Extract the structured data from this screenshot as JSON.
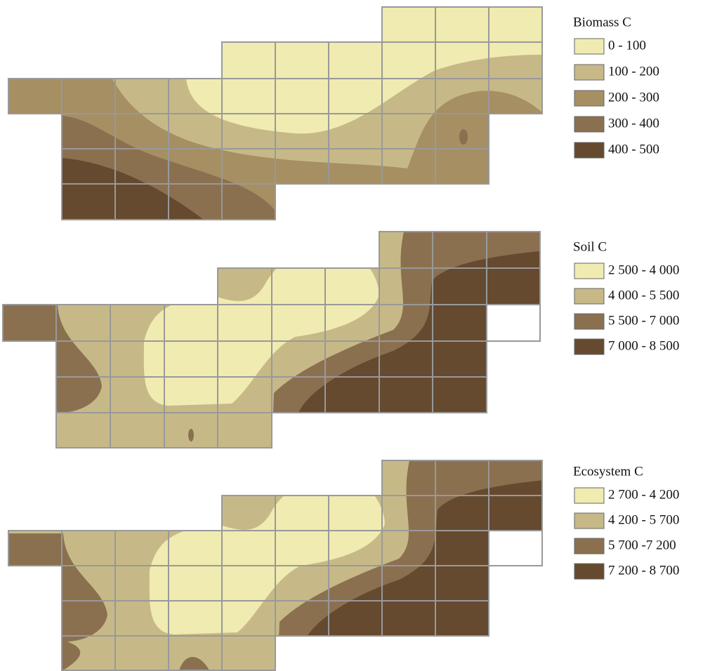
{
  "legends": [
    {
      "title": "Biomass C",
      "items": [
        {
          "label": "0 - 100",
          "color": "#f0ebb0"
        },
        {
          "label": "100 - 200",
          "color": "#c6b987"
        },
        {
          "label": "200 - 300",
          "color": "#a68f63"
        },
        {
          "label": "300 - 400",
          "color": "#8b7050"
        },
        {
          "label": "400 - 500",
          "color": "#654a30"
        }
      ]
    },
    {
      "title": "Soil C",
      "items": [
        {
          "label": "2 500 - 4 000",
          "color": "#f0ebb0"
        },
        {
          "label": "4 000 - 5 500",
          "color": "#c6b987"
        },
        {
          "label": "5 500 - 7 000",
          "color": "#8b7050"
        },
        {
          "label": "7 000 - 8 500",
          "color": "#654a30"
        }
      ]
    },
    {
      "title": "Ecosystem C",
      "items": [
        {
          "label": "2 700 - 4 200",
          "color": "#f0ebb0"
        },
        {
          "label": "4 200 - 5 700",
          "color": "#c6b987"
        },
        {
          "label": "5 700 -7 200",
          "color": "#8b7050"
        },
        {
          "label": "7 200 - 8 700",
          "color": "#654a30"
        }
      ]
    }
  ]
}
